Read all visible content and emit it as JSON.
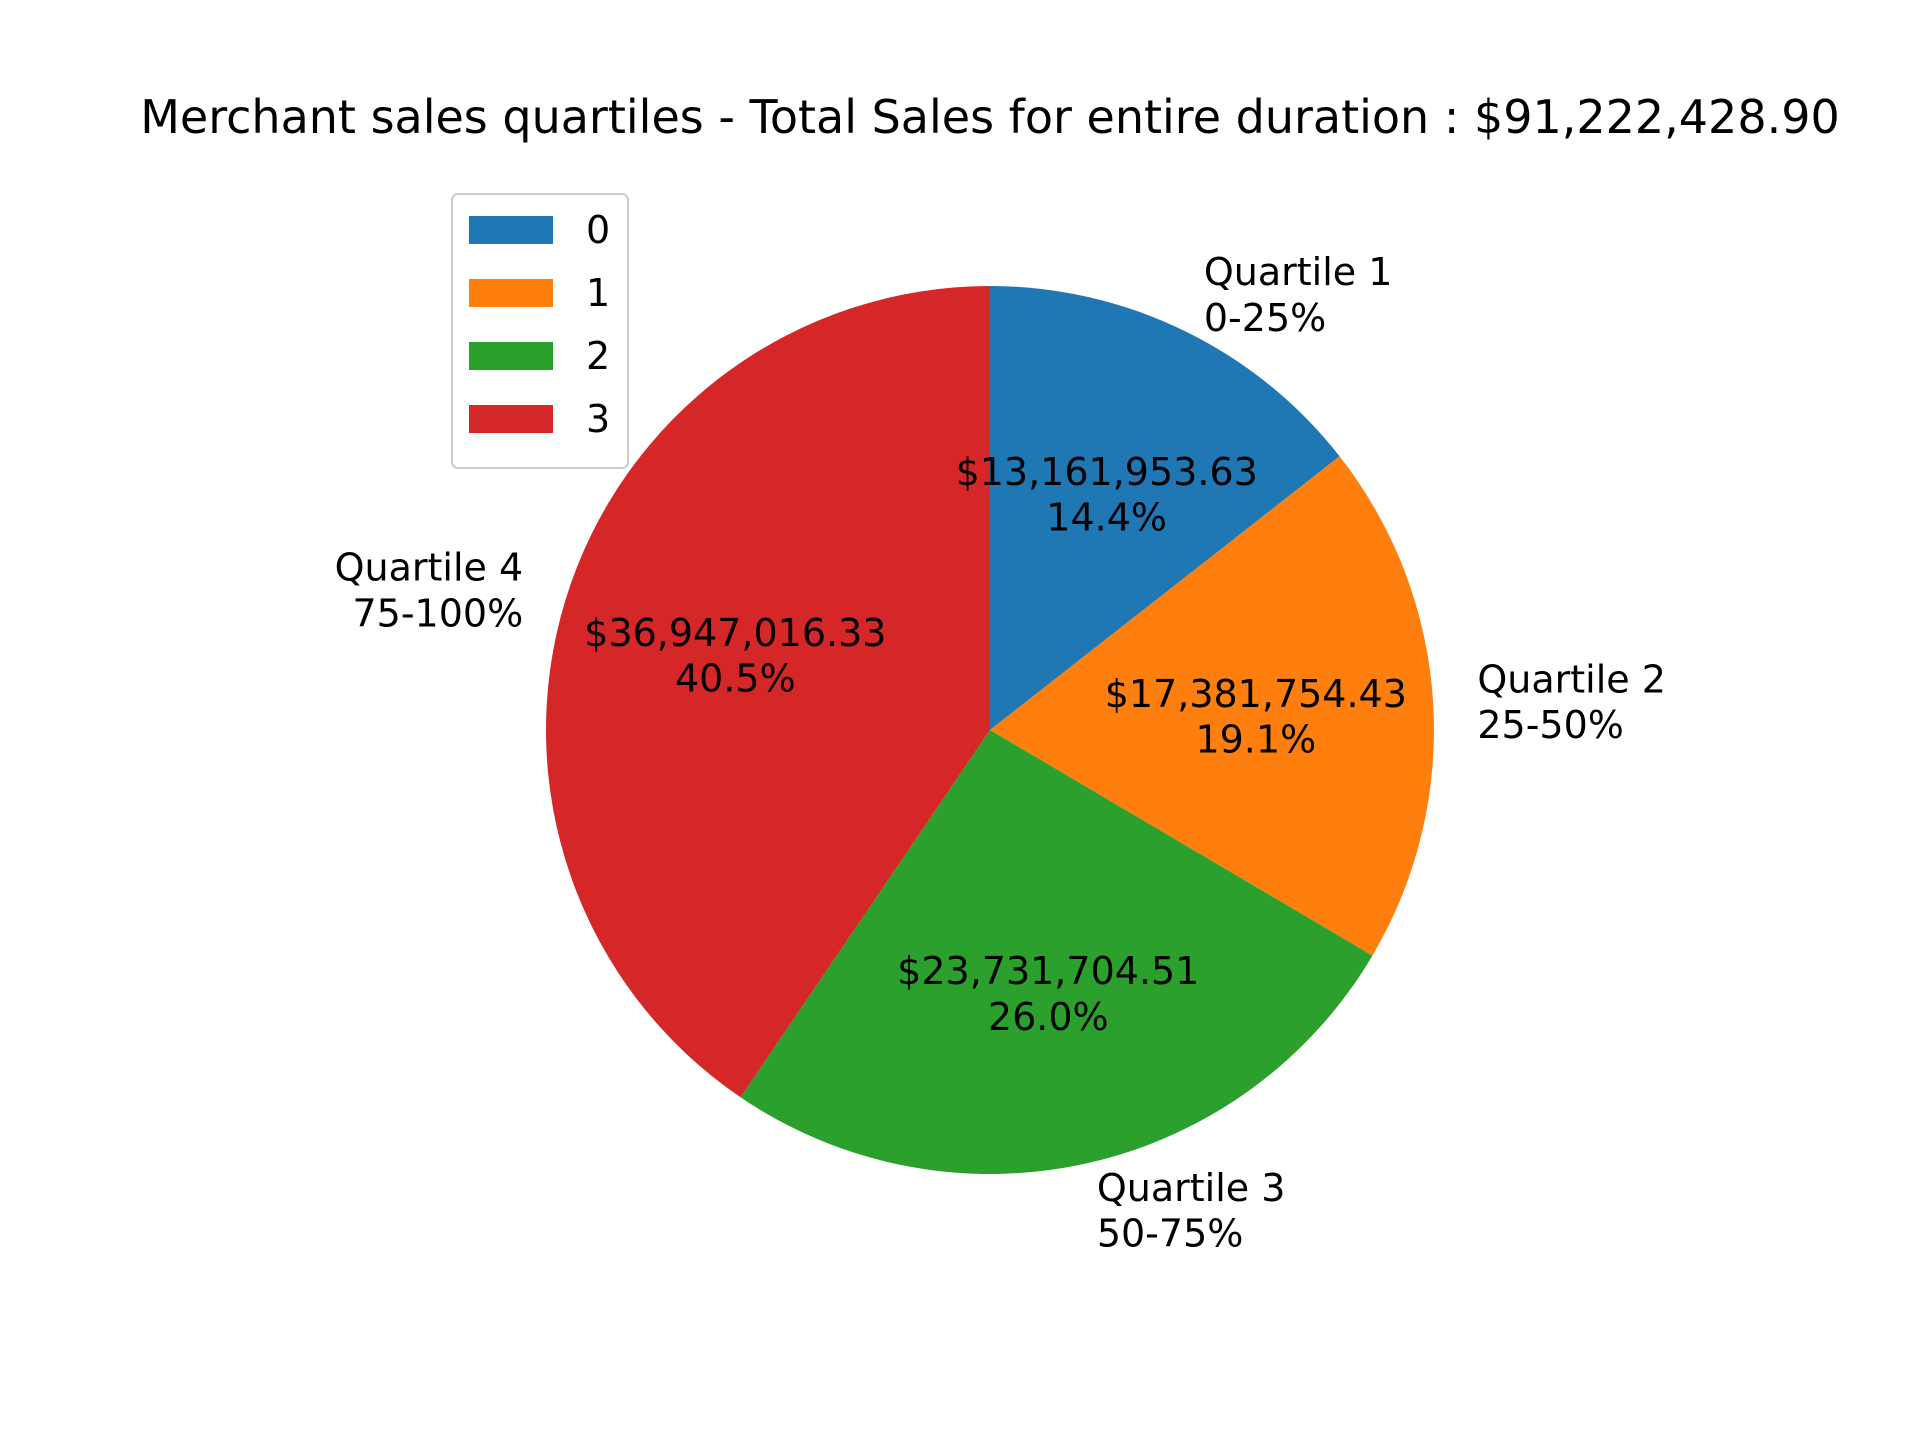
{
  "chart_data": {
    "type": "pie",
    "title": "Merchant sales quartiles - Total Sales for entire duration : $91,222,428.90",
    "start_angle_deg": 90,
    "direction": "clockwise",
    "legend_placement": "upper-left",
    "slices": [
      {
        "legend": "0",
        "label_line1": "Quartile 1",
        "label_line2": "0-25%",
        "value_text": "$13,161,953.63",
        "pct_text": "14.4%",
        "value": 13161953.63,
        "color": "#1f77b4"
      },
      {
        "legend": "1",
        "label_line1": "Quartile 2",
        "label_line2": "25-50%",
        "value_text": "$17,381,754.43",
        "pct_text": "19.1%",
        "value": 17381754.43,
        "color": "#ff7f0e"
      },
      {
        "legend": "2",
        "label_line1": "Quartile 3",
        "label_line2": "50-75%",
        "value_text": "$23,731,704.51",
        "pct_text": "26.0%",
        "value": 23731704.51,
        "color": "#2ca02c"
      },
      {
        "legend": "3",
        "label_line1": "Quartile 4",
        "label_line2": "75-100%",
        "value_text": "$36,947,016.33",
        "pct_text": "40.5%",
        "value": 36947016.33,
        "color": "#d62728"
      }
    ]
  }
}
